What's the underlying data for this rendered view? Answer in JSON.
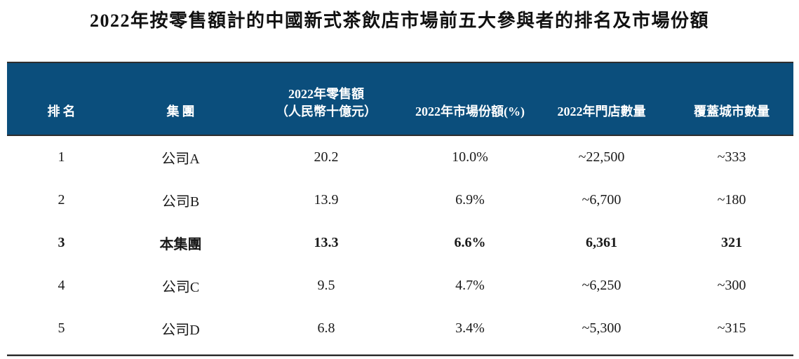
{
  "title": "2022年按零售額計的中國新式茶飲店市場前五大參與者的排名及市場份額",
  "table": {
    "header": {
      "rank": "排名",
      "group": "集團",
      "retail_line1": "2022年零售額",
      "retail_line2": "（人民幣十億元）",
      "share": "2022年市場份額(%)",
      "stores": "2022年門店數量",
      "cities": "覆蓋城市數量"
    },
    "rows": [
      {
        "rank": "1",
        "group": "公司A",
        "retail": "20.2",
        "share": "10.0%",
        "stores": "~22,500",
        "cities": "~333"
      },
      {
        "rank": "2",
        "group": "公司B",
        "retail": "13.9",
        "share": "6.9%",
        "stores": "~6,700",
        "cities": "~180"
      },
      {
        "rank": "3",
        "group": "本集團",
        "retail": "13.3",
        "share": "6.6%",
        "stores": "6,361",
        "cities": "321"
      },
      {
        "rank": "4",
        "group": "公司C",
        "retail": "9.5",
        "share": "4.7%",
        "stores": "~6,250",
        "cities": "~300"
      },
      {
        "rank": "5",
        "group": "公司D",
        "retail": "6.8",
        "share": "3.4%",
        "stores": "~5,300",
        "cities": "~315"
      }
    ],
    "highlighted_row_index": 2
  },
  "colors": {
    "header_bg": "#0B4E7C",
    "header_text": "#FFFFFF",
    "body_text": "#1A1A1A",
    "border_dark": "#2E2E2E",
    "rule_gray": "#9B9B9B"
  }
}
